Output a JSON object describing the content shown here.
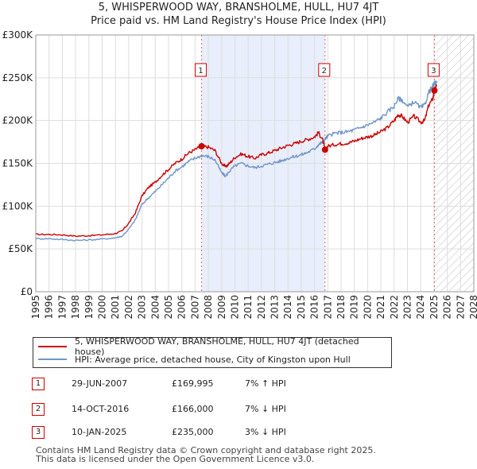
{
  "title_line1": "5, WHISPERWOOD WAY, BRANSHOLME, HULL, HU7 4JT",
  "title_line2": "Price paid vs. HM Land Registry's House Price Index (HPI)",
  "chart_data": {
    "type": "line",
    "title": "5, WHISPERWOOD WAY, BRANSHOLME, HULL, HU7 4JT — Price paid vs. HM Land Registry's House Price Index (HPI)",
    "xlabel": "",
    "ylabel": "",
    "xlim": [
      1995,
      2028
    ],
    "ylim": [
      0,
      300000
    ],
    "x_ticks": [
      1995,
      1996,
      1997,
      1998,
      1999,
      2000,
      2001,
      2002,
      2003,
      2004,
      2005,
      2006,
      2007,
      2008,
      2009,
      2010,
      2011,
      2012,
      2013,
      2014,
      2015,
      2016,
      2017,
      2018,
      2019,
      2020,
      2021,
      2022,
      2023,
      2024,
      2025,
      2026,
      2027,
      2028
    ],
    "y_ticks": [
      {
        "value": 0,
        "label": "£0"
      },
      {
        "value": 50000,
        "label": "£50K"
      },
      {
        "value": 100000,
        "label": "£100K"
      },
      {
        "value": 150000,
        "label": "£150K"
      },
      {
        "value": 200000,
        "label": "£200K"
      },
      {
        "value": 250000,
        "label": "£250K"
      },
      {
        "value": 300000,
        "label": "£300K"
      }
    ],
    "grid": true,
    "shaded_period": [
      2007.49,
      2016.79
    ],
    "future_hatch_from": 2025.03,
    "series": [
      {
        "name": "5, WHISPERWOOD WAY, BRANSHOLME, HULL, HU7 4JT (detached house)",
        "color": "#cc0000",
        "x": [
          1995.0,
          1996.0,
          1997.0,
          1998.0,
          1999.0,
          2000.0,
          2001.0,
          2001.5,
          2002.0,
          2002.5,
          2003.0,
          2003.5,
          2004.0,
          2004.5,
          2005.0,
          2005.5,
          2006.0,
          2006.5,
          2007.0,
          2007.49,
          2008.0,
          2008.5,
          2009.0,
          2009.3,
          2009.6,
          2010.0,
          2010.5,
          2011.0,
          2011.5,
          2012.0,
          2012.5,
          2013.0,
          2013.5,
          2014.0,
          2014.5,
          2015.0,
          2015.5,
          2016.0,
          2016.3,
          2016.6,
          2016.79,
          2017.0,
          2017.5,
          2018.0,
          2018.5,
          2019.0,
          2019.5,
          2020.0,
          2020.5,
          2021.0,
          2021.5,
          2022.0,
          2022.3,
          2022.6,
          2023.0,
          2023.5,
          2024.0,
          2024.3,
          2024.6,
          2024.9,
          2025.03,
          2025.2
        ],
        "values": [
          67000,
          67000,
          66500,
          65000,
          65500,
          66500,
          68000,
          71000,
          80000,
          92000,
          112000,
          122000,
          128000,
          136000,
          143000,
          150000,
          155000,
          162000,
          166000,
          169995,
          169000,
          165000,
          150000,
          146000,
          150000,
          157000,
          161000,
          158000,
          156000,
          160000,
          162000,
          165000,
          168000,
          171000,
          173000,
          176000,
          178000,
          181000,
          186000,
          178000,
          166000,
          170000,
          172000,
          173000,
          174000,
          176000,
          179000,
          181000,
          183000,
          187000,
          192000,
          200000,
          207000,
          205000,
          198000,
          205000,
          198000,
          200000,
          218000,
          225000,
          235000,
          240000
        ]
      },
      {
        "name": "HPI: Average price, detached house, City of Kingston upon Hull",
        "color": "#6f95c8",
        "x": [
          1995.0,
          1996.0,
          1997.0,
          1998.0,
          1999.0,
          2000.0,
          2001.0,
          2001.5,
          2002.0,
          2002.5,
          2003.0,
          2003.5,
          2004.0,
          2004.5,
          2005.0,
          2005.5,
          2006.0,
          2006.5,
          2007.0,
          2007.49,
          2008.0,
          2008.5,
          2009.0,
          2009.3,
          2009.6,
          2010.0,
          2010.5,
          2011.0,
          2011.5,
          2012.0,
          2012.5,
          2013.0,
          2013.5,
          2014.0,
          2014.5,
          2015.0,
          2015.5,
          2016.0,
          2016.3,
          2016.6,
          2016.79,
          2017.0,
          2017.5,
          2018.0,
          2018.5,
          2019.0,
          2019.5,
          2020.0,
          2020.5,
          2021.0,
          2021.5,
          2022.0,
          2022.3,
          2022.6,
          2023.0,
          2023.5,
          2024.0,
          2024.3,
          2024.6,
          2024.9,
          2025.03,
          2025.2
        ],
        "values": [
          62000,
          62000,
          61000,
          60000,
          60500,
          61500,
          63000,
          65000,
          73000,
          84000,
          102000,
          110000,
          117000,
          125000,
          133000,
          141000,
          146000,
          152000,
          156000,
          159000,
          158000,
          154000,
          139000,
          135000,
          141000,
          147000,
          150000,
          147000,
          145000,
          147000,
          149000,
          151000,
          153000,
          156000,
          158000,
          160000,
          163000,
          167000,
          172000,
          175000,
          178000,
          182000,
          185000,
          186000,
          187000,
          189000,
          192000,
          195000,
          198000,
          203000,
          210000,
          217000,
          226000,
          224000,
          216000,
          222000,
          215000,
          218000,
          233000,
          240000,
          243000,
          245000
        ]
      }
    ],
    "annotations": [
      {
        "label": "1",
        "x": 2007.49,
        "value": 169995
      },
      {
        "label": "2",
        "x": 2016.79,
        "value": 166000
      },
      {
        "label": "3",
        "x": 2025.03,
        "value": 235000
      }
    ]
  },
  "legend": {
    "property_label": "5, WHISPERWOOD WAY, BRANSHOLME, HULL, HU7 4JT (detached house)",
    "hpi_label": "HPI: Average price, detached house, City of Kingston upon Hull",
    "property_color": "#cc0000",
    "hpi_color": "#6f95c8"
  },
  "transactions": [
    {
      "num": "1",
      "date": "29-JUN-2007",
      "price": "£169,995",
      "hpi": "7% ↑ HPI"
    },
    {
      "num": "2",
      "date": "14-OCT-2016",
      "price": "£166,000",
      "hpi": "7% ↓ HPI"
    },
    {
      "num": "3",
      "date": "10-JAN-2025",
      "price": "£235,000",
      "hpi": "3% ↓ HPI"
    }
  ],
  "footer": {
    "line1": "Contains HM Land Registry data © Crown copyright and database right 2025.",
    "line2": "This data is licensed under the Open Government Licence v3.0."
  }
}
